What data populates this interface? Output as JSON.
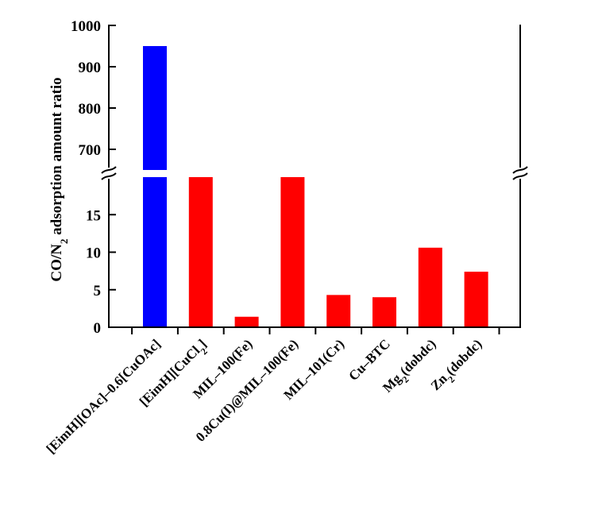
{
  "chart_data": {
    "type": "bar",
    "title": "",
    "xlabel": "",
    "ylabel": "CO/N₂ adsorption amount ratio",
    "ylabel_parts": [
      "CO/N",
      "2",
      " adsorption amount ratio"
    ],
    "categories": [
      "[EimH][OAc]-0.6[CuOAc]",
      "[EimH][CuCl₂]",
      "MIL-100(Fe)",
      "0.8Cu(I)@MIL-100(Fe)",
      "MIL-101(Cr)",
      "Cu-BTC",
      "Mg₂(dobdc)",
      "Zn₂(dobdc)"
    ],
    "category_labels": [
      [
        {
          "t": "[EimH][OAc]–0.6[CuOAc]",
          "sub": false
        }
      ],
      [
        {
          "t": "[EimH][CuCl",
          "sub": false
        },
        {
          "t": "2",
          "sub": true
        },
        {
          "t": "]",
          "sub": false
        }
      ],
      [
        {
          "t": "MIL–100(Fe)",
          "sub": false
        }
      ],
      [
        {
          "t": "0.8Cu(I)@MIL–100(Fe)",
          "sub": false
        }
      ],
      [
        {
          "t": "MIL–101(Cr)",
          "sub": false
        }
      ],
      [
        {
          "t": "Cu–BTC",
          "sub": false
        }
      ],
      [
        {
          "t": "Mg",
          "sub": false
        },
        {
          "t": "2",
          "sub": true
        },
        {
          "t": "(dobdc)",
          "sub": false
        }
      ],
      [
        {
          "t": "Zn",
          "sub": false
        },
        {
          "t": "2",
          "sub": true
        },
        {
          "t": "(dobdc)",
          "sub": false
        }
      ]
    ],
    "values": [
      950,
      20,
      1.4,
      20,
      4.3,
      4,
      10.6,
      7.4
    ],
    "colors": [
      "#0000ff",
      "#ff0000",
      "#ff0000",
      "#ff0000",
      "#ff0000",
      "#ff0000",
      "#ff0000",
      "#ff0000"
    ],
    "y_axis_break": true,
    "lower_segment": {
      "ylim": [
        0,
        20
      ],
      "ticks": [
        0,
        5,
        10,
        15
      ]
    },
    "upper_segment": {
      "ylim": [
        650,
        1000
      ],
      "ticks": [
        700,
        800,
        900,
        1000
      ]
    },
    "grid": false,
    "legend": "none"
  }
}
